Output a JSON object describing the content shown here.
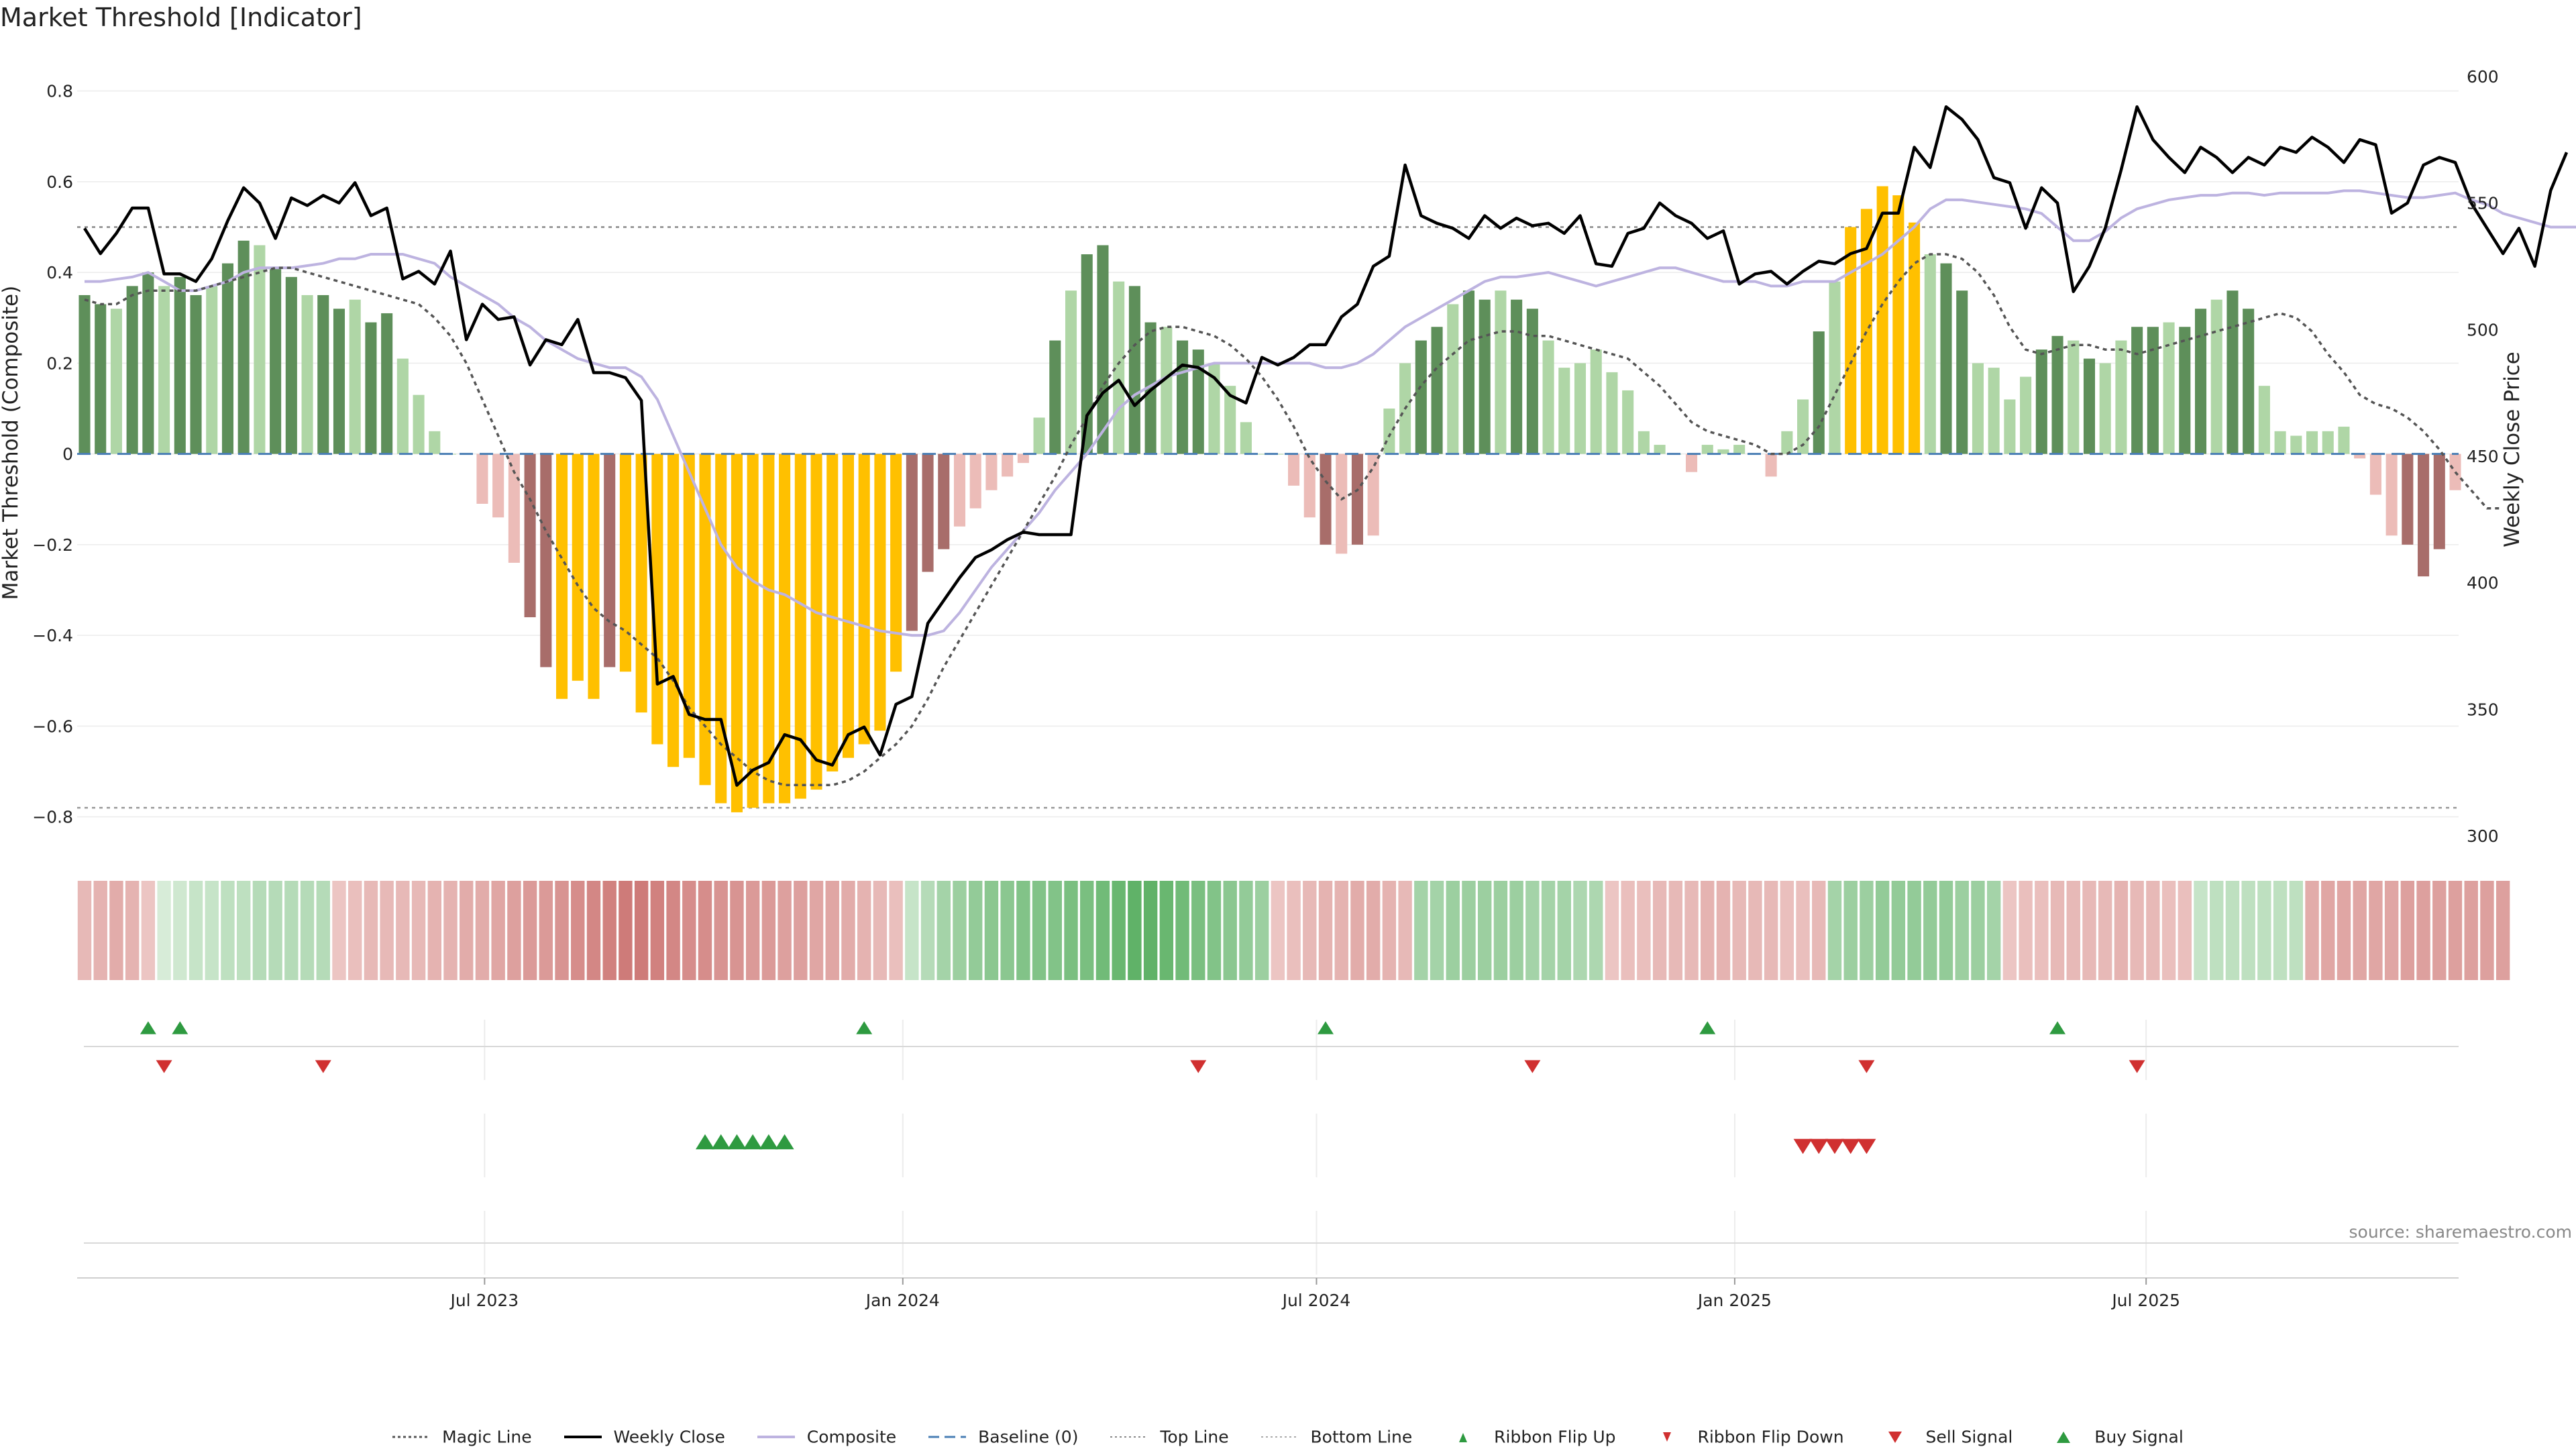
{
  "title": "Market Threshold [Indicator]",
  "source": "source: sharemaestro.com",
  "legend": {
    "magic": "Magic Line",
    "close": "Weekly Close",
    "composite": "Composite",
    "baseline": "Baseline (0)",
    "top": "Top Line",
    "bottom": "Bottom Line",
    "flip_up": "Ribbon Flip Up",
    "flip_down": "Ribbon Flip Down",
    "sell": "Sell Signal",
    "buy": "Buy Signal"
  },
  "colors": {
    "strong_pos": "#5e8f5a",
    "weak_pos": "#afd6a6",
    "strong_neg": "#a86d6a",
    "weak_neg": "#ecbcb8",
    "extreme": "#ffc000",
    "close": "#000000",
    "composite": "#bdb3e0",
    "magic": "#555555",
    "baseline": "#4a7fb5",
    "ref": "#777777",
    "up": "#2e9a40",
    "down": "#d03030"
  },
  "chart_data": {
    "type": "bar",
    "start_date": "2023-01-06",
    "x_ticks": [
      {
        "date": "2023-07-01",
        "label": "Jul 2023"
      },
      {
        "date": "2024-01-01",
        "label": "Jan 2024"
      },
      {
        "date": "2024-07-01",
        "label": "Jul 2024"
      },
      {
        "date": "2025-01-01",
        "label": "Jan 2025"
      },
      {
        "date": "2025-07-01",
        "label": "Jul 2025"
      }
    ],
    "ylabel": "Market Threshold (Composite)",
    "ylabel_right": "Weekly Close Price",
    "ylim": [
      -0.87,
      0.86
    ],
    "ylim_right": [
      295,
      605
    ],
    "y_ticks": [
      -0.8,
      -0.6,
      -0.4,
      -0.2,
      0,
      0.2,
      0.4,
      0.6,
      0.8
    ],
    "y_ticks_right": [
      300,
      350,
      400,
      450,
      500,
      550,
      600
    ],
    "top_line": 0.5,
    "bottom_line": -0.78,
    "series": [
      {
        "name": "Weekly Close",
        "values": [
          540,
          530,
          538,
          548,
          548,
          522,
          522,
          519,
          528,
          543,
          556,
          550,
          536,
          552,
          549,
          553,
          550,
          558,
          545,
          548,
          520,
          523,
          518,
          531,
          496,
          510,
          504,
          505,
          486,
          496,
          494,
          504,
          483,
          483,
          481,
          472,
          360,
          363,
          348,
          346,
          346,
          320,
          326,
          329,
          340,
          338,
          330,
          328,
          340,
          343,
          332,
          352,
          355,
          384,
          393,
          402,
          410,
          413,
          417,
          420,
          419,
          419,
          419,
          466,
          475,
          480,
          470,
          476,
          481,
          486,
          485,
          481,
          474,
          471,
          489,
          486,
          489,
          494,
          494,
          505,
          510,
          525,
          529,
          565,
          545,
          542,
          540,
          536,
          545,
          540,
          544,
          541,
          542,
          538,
          545,
          526,
          525,
          538,
          540,
          550,
          545,
          542,
          536,
          539,
          518,
          522,
          523,
          518,
          523,
          527,
          526,
          530,
          532,
          546,
          546,
          572,
          564,
          588,
          583,
          575,
          560,
          558,
          540,
          556,
          550,
          515,
          525,
          540,
          563,
          588,
          575,
          568,
          562,
          572,
          568,
          562,
          568,
          565,
          572,
          570,
          576,
          572,
          566,
          575,
          573,
          546,
          550,
          565,
          568,
          566,
          550,
          540,
          530,
          540,
          525,
          555,
          570
        ]
      },
      {
        "name": "Composite",
        "values": [
          0.38,
          0.38,
          0.385,
          0.39,
          0.4,
          0.38,
          0.36,
          0.36,
          0.37,
          0.38,
          0.4,
          0.41,
          0.41,
          0.41,
          0.415,
          0.42,
          0.43,
          0.43,
          0.44,
          0.44,
          0.44,
          0.43,
          0.42,
          0.39,
          0.37,
          0.35,
          0.33,
          0.3,
          0.28,
          0.25,
          0.23,
          0.21,
          0.2,
          0.19,
          0.19,
          0.17,
          0.12,
          0.04,
          -0.04,
          -0.12,
          -0.2,
          -0.25,
          -0.28,
          -0.3,
          -0.31,
          -0.33,
          -0.35,
          -0.36,
          -0.37,
          -0.38,
          -0.39,
          -0.395,
          -0.4,
          -0.4,
          -0.39,
          -0.35,
          -0.3,
          -0.25,
          -0.21,
          -0.17,
          -0.13,
          -0.08,
          -0.04,
          0.0,
          0.05,
          0.1,
          0.13,
          0.15,
          0.17,
          0.18,
          0.19,
          0.2,
          0.2,
          0.2,
          0.2,
          0.2,
          0.2,
          0.2,
          0.19,
          0.19,
          0.2,
          0.22,
          0.25,
          0.28,
          0.3,
          0.32,
          0.34,
          0.36,
          0.38,
          0.39,
          0.39,
          0.395,
          0.4,
          0.39,
          0.38,
          0.37,
          0.38,
          0.39,
          0.4,
          0.41,
          0.41,
          0.4,
          0.39,
          0.38,
          0.38,
          0.38,
          0.37,
          0.37,
          0.38,
          0.38,
          0.38,
          0.4,
          0.42,
          0.44,
          0.47,
          0.5,
          0.54,
          0.56,
          0.56,
          0.555,
          0.55,
          0.545,
          0.54,
          0.53,
          0.5,
          0.47,
          0.47,
          0.49,
          0.52,
          0.54,
          0.55,
          0.56,
          0.565,
          0.57,
          0.57,
          0.575,
          0.575,
          0.57,
          0.575,
          0.575,
          0.575,
          0.575,
          0.58,
          0.58,
          0.575,
          0.57,
          0.565,
          0.565,
          0.57,
          0.575,
          0.56,
          0.55,
          0.53,
          0.52,
          0.51,
          0.5,
          0.5,
          0.5
        ]
      },
      {
        "name": "Magic Line",
        "values": [
          0.34,
          0.33,
          0.33,
          0.35,
          0.36,
          0.36,
          0.36,
          0.36,
          0.37,
          0.38,
          0.39,
          0.4,
          0.41,
          0.41,
          0.4,
          0.39,
          0.38,
          0.37,
          0.36,
          0.35,
          0.34,
          0.33,
          0.3,
          0.26,
          0.2,
          0.12,
          0.04,
          -0.04,
          -0.1,
          -0.17,
          -0.23,
          -0.29,
          -0.34,
          -0.37,
          -0.39,
          -0.42,
          -0.45,
          -0.5,
          -0.56,
          -0.6,
          -0.64,
          -0.67,
          -0.7,
          -0.72,
          -0.73,
          -0.73,
          -0.73,
          -0.73,
          -0.72,
          -0.7,
          -0.67,
          -0.64,
          -0.6,
          -0.54,
          -0.47,
          -0.41,
          -0.35,
          -0.29,
          -0.23,
          -0.17,
          -0.11,
          -0.05,
          0.02,
          0.08,
          0.15,
          0.2,
          0.24,
          0.27,
          0.28,
          0.28,
          0.27,
          0.26,
          0.24,
          0.21,
          0.17,
          0.12,
          0.06,
          -0.01,
          -0.06,
          -0.1,
          -0.08,
          -0.03,
          0.04,
          0.1,
          0.15,
          0.19,
          0.22,
          0.25,
          0.26,
          0.27,
          0.27,
          0.26,
          0.26,
          0.25,
          0.24,
          0.23,
          0.22,
          0.21,
          0.18,
          0.15,
          0.11,
          0.07,
          0.05,
          0.04,
          0.03,
          0.02,
          0.0,
          0.0,
          0.02,
          0.06,
          0.13,
          0.2,
          0.27,
          0.33,
          0.38,
          0.42,
          0.44,
          0.44,
          0.43,
          0.4,
          0.35,
          0.28,
          0.23,
          0.22,
          0.23,
          0.24,
          0.24,
          0.23,
          0.23,
          0.22,
          0.23,
          0.24,
          0.25,
          0.26,
          0.27,
          0.28,
          0.29,
          0.3,
          0.31,
          0.3,
          0.27,
          0.22,
          0.18,
          0.13,
          0.11,
          0.1,
          0.08,
          0.05,
          0.01,
          -0.04,
          -0.08,
          -0.12,
          -0.12
        ]
      },
      {
        "name": "Bars",
        "values": [
          0.35,
          0.33,
          0.32,
          0.37,
          0.4,
          0.37,
          0.39,
          0.35,
          0.37,
          0.42,
          0.47,
          0.46,
          0.41,
          0.39,
          0.35,
          0.35,
          0.32,
          0.34,
          0.29,
          0.31,
          0.21,
          0.13,
          0.05,
          0.0,
          0.0,
          -0.11,
          -0.14,
          -0.24,
          -0.36,
          -0.47,
          -0.54,
          -0.5,
          -0.54,
          -0.47,
          -0.48,
          -0.57,
          -0.64,
          -0.69,
          -0.67,
          -0.73,
          -0.77,
          -0.79,
          -0.78,
          -0.77,
          -0.77,
          -0.76,
          -0.74,
          -0.7,
          -0.67,
          -0.64,
          -0.61,
          -0.48,
          -0.39,
          -0.26,
          -0.21,
          -0.16,
          -0.12,
          -0.08,
          -0.05,
          -0.02,
          0.08,
          0.25,
          0.36,
          0.44,
          0.46,
          0.38,
          0.37,
          0.29,
          0.28,
          0.25,
          0.23,
          0.2,
          0.15,
          0.07,
          0.0,
          0.0,
          -0.07,
          -0.14,
          -0.2,
          -0.22,
          -0.2,
          -0.18,
          0.1,
          0.2,
          0.25,
          0.28,
          0.33,
          0.36,
          0.34,
          0.36,
          0.34,
          0.32,
          0.25,
          0.19,
          0.2,
          0.23,
          0.18,
          0.14,
          0.05,
          0.02,
          0.0,
          -0.04,
          0.02,
          0.01,
          0.02,
          0.0,
          -0.05,
          0.05,
          0.12,
          0.27,
          0.38,
          0.5,
          0.54,
          0.59,
          0.57,
          0.51,
          0.44,
          0.42,
          0.36,
          0.2,
          0.19,
          0.12,
          0.17,
          0.23,
          0.26,
          0.25,
          0.21,
          0.2,
          0.25,
          0.28,
          0.28,
          0.29,
          0.28,
          0.32,
          0.34,
          0.36,
          0.32,
          0.15,
          0.05,
          0.04,
          0.05,
          0.05,
          0.06,
          -0.01,
          -0.09,
          -0.18,
          -0.2,
          -0.27,
          -0.21,
          -0.08
        ]
      }
    ],
    "ribbon": [
      -0.3,
      -0.35,
      -0.4,
      -0.35,
      -0.2,
      0.1,
      0.15,
      0.2,
      0.2,
      0.25,
      0.25,
      0.3,
      0.3,
      0.3,
      0.3,
      0.3,
      -0.2,
      -0.25,
      -0.3,
      -0.3,
      -0.3,
      -0.3,
      -0.35,
      -0.35,
      -0.4,
      -0.4,
      -0.45,
      -0.5,
      -0.55,
      -0.55,
      -0.6,
      -0.65,
      -0.7,
      -0.75,
      -0.8,
      -0.8,
      -0.75,
      -0.7,
      -0.65,
      -0.65,
      -0.6,
      -0.6,
      -0.55,
      -0.55,
      -0.5,
      -0.5,
      -0.45,
      -0.45,
      -0.4,
      -0.35,
      -0.3,
      -0.25,
      0.2,
      0.3,
      0.4,
      0.45,
      0.5,
      0.55,
      0.55,
      0.6,
      0.6,
      0.6,
      0.65,
      0.65,
      0.7,
      0.75,
      0.8,
      0.8,
      0.75,
      0.7,
      0.65,
      0.6,
      0.55,
      0.5,
      0.45,
      -0.2,
      -0.25,
      -0.3,
      -0.35,
      -0.35,
      -0.4,
      -0.4,
      -0.35,
      -0.3,
      0.4,
      0.4,
      0.45,
      0.45,
      0.45,
      0.45,
      0.45,
      0.4,
      0.4,
      0.4,
      0.35,
      0.35,
      -0.2,
      -0.25,
      -0.25,
      -0.3,
      -0.3,
      -0.3,
      -0.35,
      -0.35,
      -0.3,
      -0.3,
      -0.3,
      -0.25,
      -0.25,
      -0.3,
      0.4,
      0.45,
      0.45,
      0.5,
      0.5,
      0.5,
      0.5,
      0.5,
      0.45,
      0.45,
      0.4,
      -0.2,
      -0.25,
      -0.25,
      -0.3,
      -0.3,
      -0.3,
      -0.3,
      -0.35,
      -0.3,
      -0.3,
      -0.25,
      -0.25,
      0.2,
      0.25,
      0.25,
      0.25,
      0.25,
      0.25,
      0.25,
      -0.4,
      -0.45,
      -0.45,
      -0.45,
      -0.45,
      -0.45,
      -0.5,
      -0.5,
      -0.5,
      -0.5,
      -0.5,
      -0.5,
      -0.5
    ],
    "flip_up_idx": [
      4,
      6,
      49,
      78,
      102,
      124
    ],
    "flip_down_idx": [
      5,
      15,
      70,
      91,
      112,
      129
    ],
    "buy_idx": [
      39,
      40,
      41,
      42,
      43,
      44
    ],
    "sell_idx": [
      108,
      109,
      110,
      111,
      112
    ]
  }
}
